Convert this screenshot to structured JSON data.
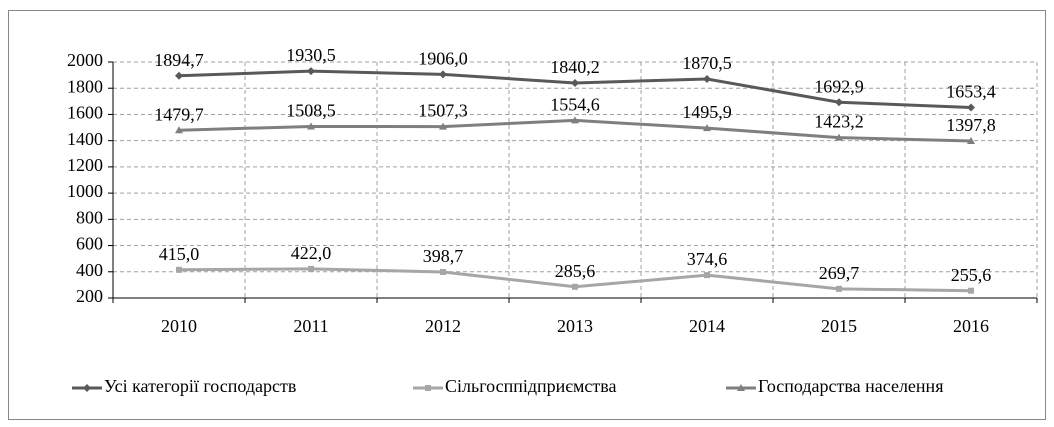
{
  "chart_data": {
    "type": "line",
    "categories": [
      "2010",
      "2011",
      "2012",
      "2013",
      "2014",
      "2015",
      "2016"
    ],
    "series": [
      {
        "name": "Усі категорії господарств",
        "color": "#595959",
        "marker": "diamond",
        "values": [
          1894.7,
          1930.5,
          1906.0,
          1840.2,
          1870.5,
          1692.9,
          1653.4
        ],
        "value_labels": [
          "1894,7",
          "1930,5",
          "1906,0",
          "1840,2",
          "1870,5",
          "1692,9",
          "1653,4"
        ]
      },
      {
        "name": "Сільгосппідприємства",
        "color": "#a6a6a6",
        "marker": "square",
        "values": [
          415.0,
          422.0,
          398.7,
          285.6,
          374.6,
          269.7,
          255.6
        ],
        "value_labels": [
          "415,0",
          "422,0",
          "398,7",
          "285,6",
          "374,6",
          "269,7",
          "255,6"
        ]
      },
      {
        "name": "Господарства населення",
        "color": "#7f7f7f",
        "marker": "triangle",
        "values": [
          1479.7,
          1508.5,
          1507.3,
          1554.6,
          1495.9,
          1423.2,
          1397.8
        ],
        "value_labels": [
          "1479,7",
          "1508,5",
          "1507,3",
          "1554,6",
          "1495,9",
          "1423,2",
          "1397,8"
        ]
      }
    ],
    "ylim": [
      200,
      2000
    ],
    "yticks": [
      200,
      400,
      600,
      800,
      1000,
      1200,
      1400,
      1600,
      1800,
      2000
    ],
    "grid": true,
    "legend": "bottom"
  }
}
